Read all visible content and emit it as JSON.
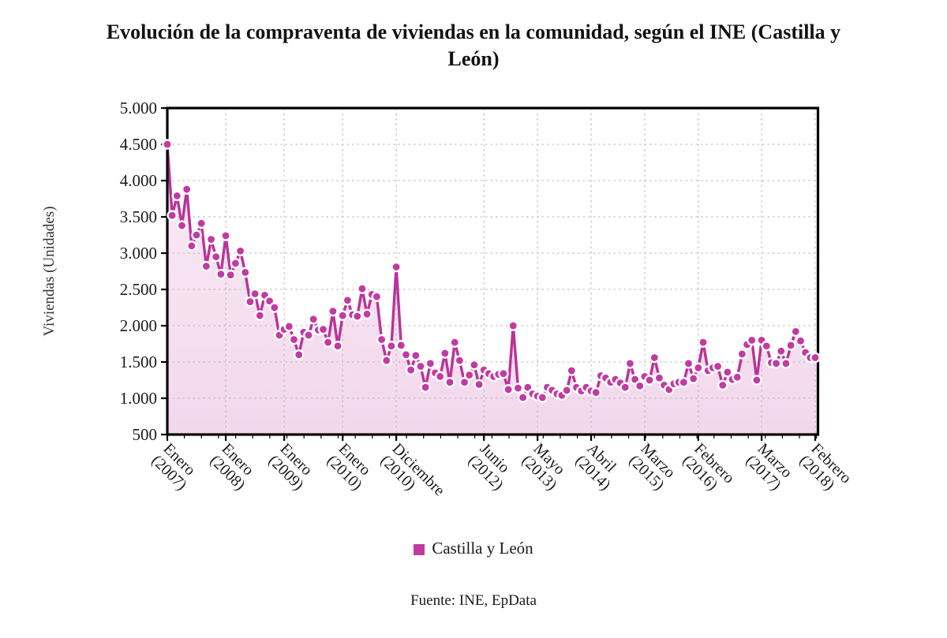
{
  "chart": {
    "title_line1": "Evolución de la compraventa de viviendas en la comunidad, según el INE (Castilla y",
    "title_line2": "León)",
    "legend": {
      "label": "Castilla y León",
      "swatch_color": "#c23aa2"
    },
    "source": "Fuente: INE, EpData"
  },
  "chart_data": {
    "type": "line",
    "title": "Evolución de la compraventa de viviendas en la comunidad, según el INE (Castilla y León)",
    "ylabel": "Viviendas (Unidades)",
    "ylim": [
      500,
      5000
    ],
    "ytick_step": 500,
    "grid": true,
    "legend_position": "bottom",
    "colors": {
      "line": "#b93399",
      "marker": "#c23aa2",
      "marker_outline": "#ffffff",
      "area_rgb": "194,58,162",
      "area_opacity_top": 0.1,
      "area_opacity_bottom": 0.2,
      "gridline": "#c3c3c3",
      "axis": "#000000",
      "tick_text": "#1a1a1a"
    },
    "y_tick_labels": [
      "5.000",
      "4.500",
      "4.000",
      "3.500",
      "3.000",
      "2.500",
      "2.000",
      "1.500",
      "1.000",
      "500"
    ],
    "x_tick_labels": [
      {
        "index": 0,
        "month": "Enero",
        "year": "(2007)"
      },
      {
        "index": 12,
        "month": "Enero",
        "year": "(2008)"
      },
      {
        "index": 24,
        "month": "Enero",
        "year": "(2009)"
      },
      {
        "index": 36,
        "month": "Enero",
        "year": "(2010)"
      },
      {
        "index": 47,
        "month": "Diciembre",
        "year": "(2010)"
      },
      {
        "index": 65,
        "month": "Junio",
        "year": "(2012)"
      },
      {
        "index": 76,
        "month": "Mayo",
        "year": "(2013)"
      },
      {
        "index": 87,
        "month": "Abril",
        "year": "(2014)"
      },
      {
        "index": 98,
        "month": "Marzo",
        "year": "(2015)"
      },
      {
        "index": 109,
        "month": "Febrero",
        "year": "(2016)"
      },
      {
        "index": 122,
        "month": "Marzo",
        "year": "(2017)"
      },
      {
        "index": 133,
        "month": "Febrero",
        "year": "(2018)"
      }
    ],
    "series": [
      {
        "name": "Castilla y León",
        "start": "Enero 2007",
        "end": "Febrero 2018",
        "values": [
          4500,
          3520,
          3790,
          3380,
          3880,
          3100,
          3250,
          3410,
          2820,
          3190,
          2950,
          2710,
          3240,
          2700,
          2860,
          3030,
          2735,
          2330,
          2440,
          2140,
          2420,
          2340,
          2250,
          1870,
          1950,
          1990,
          1810,
          1600,
          1910,
          1870,
          2090,
          1940,
          1950,
          1770,
          2200,
          1720,
          2140,
          2350,
          2150,
          2130,
          2510,
          2160,
          2430,
          2400,
          1810,
          1520,
          1720,
          2810,
          1730,
          1600,
          1390,
          1590,
          1440,
          1150,
          1480,
          1350,
          1300,
          1620,
          1220,
          1770,
          1520,
          1220,
          1320,
          1460,
          1190,
          1390,
          1340,
          1300,
          1330,
          1340,
          1120,
          2000,
          1140,
          1010,
          1150,
          1060,
          1030,
          1010,
          1150,
          1110,
          1060,
          1040,
          1110,
          1380,
          1150,
          1100,
          1150,
          1100,
          1080,
          1310,
          1280,
          1220,
          1260,
          1210,
          1150,
          1480,
          1260,
          1170,
          1300,
          1250,
          1560,
          1280,
          1180,
          1120,
          1200,
          1220,
          1220,
          1480,
          1270,
          1420,
          1770,
          1380,
          1420,
          1440,
          1180,
          1360,
          1260,
          1290,
          1610,
          1740,
          1800,
          1250,
          1800,
          1720,
          1490,
          1480,
          1650,
          1480,
          1730,
          1920,
          1790,
          1630,
          1560,
          1560
        ]
      }
    ]
  }
}
